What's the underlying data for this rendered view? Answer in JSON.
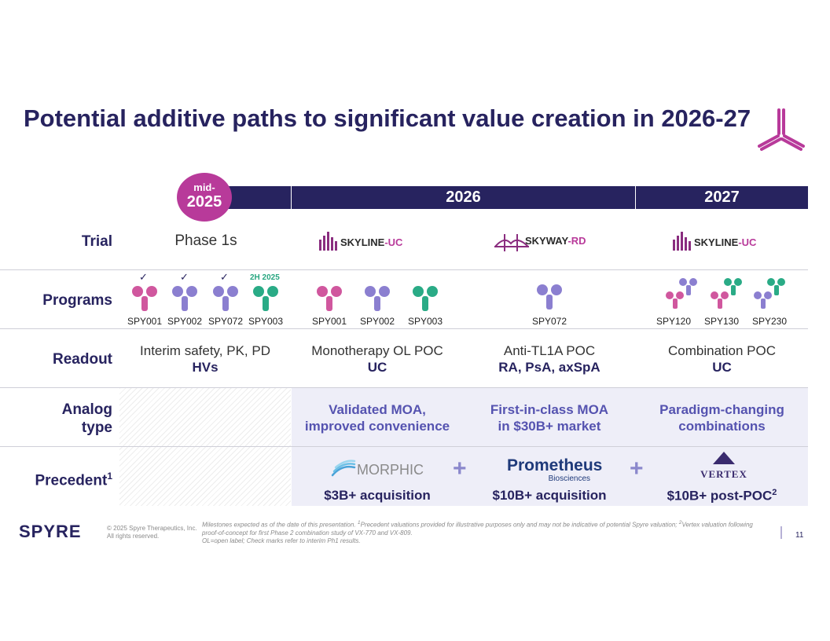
{
  "title": "Potential additive paths to significant value creation in 2026-27",
  "timeline": {
    "mid_label": "mid-",
    "mid_year": "2025",
    "year_2026": "2026",
    "year_2027": "2027"
  },
  "rows": {
    "trial": "Trial",
    "programs": "Programs",
    "readout": "Readout",
    "analog": [
      "Analog",
      "type"
    ],
    "precedent": "Precedent",
    "precedent_sup": "1"
  },
  "trial": {
    "col1": "Phase 1s",
    "col2_logo": {
      "name": "SKYLINE",
      "suffix": "-UC"
    },
    "col3_logo": {
      "name": "SKYWAY",
      "suffix": "-RD"
    },
    "col4_logo": {
      "name": "SKYLINE",
      "suffix": "-UC"
    }
  },
  "programs": {
    "col1": [
      {
        "label": "SPY001",
        "mark": "✓",
        "color": "#d0579e"
      },
      {
        "label": "SPY002",
        "mark": "✓",
        "color": "#8b7fd0"
      },
      {
        "label": "SPY072",
        "mark": "✓",
        "color": "#8b7fd0"
      },
      {
        "label": "SPY003",
        "mark": "2H 2025",
        "color": "#2aab86"
      }
    ],
    "col2": [
      {
        "label": "SPY001",
        "color": "#d0579e"
      },
      {
        "label": "SPY002",
        "color": "#8b7fd0"
      },
      {
        "label": "SPY003",
        "color": "#2aab86"
      }
    ],
    "col3": [
      {
        "label": "SPY072",
        "color": "#8b7fd0"
      }
    ],
    "col4": [
      {
        "label": "SPY120",
        "color1": "#d0579e",
        "color2": "#8b7fd0"
      },
      {
        "label": "SPY130",
        "color1": "#d0579e",
        "color2": "#2aab86"
      },
      {
        "label": "SPY230",
        "color1": "#8b7fd0",
        "color2": "#2aab86"
      }
    ]
  },
  "readout": {
    "col1": {
      "top": "Interim safety, PK, PD",
      "bottom": "HVs"
    },
    "col2": {
      "top": "Monotherapy OL POC",
      "bottom": "UC"
    },
    "col3": {
      "top": "Anti-TL1A POC",
      "bottom": "RA, PsA, axSpA"
    },
    "col4": {
      "top": "Combination POC",
      "bottom": "UC"
    }
  },
  "analog": {
    "col2": [
      "Validated MOA,",
      "improved convenience"
    ],
    "col3": [
      "First-in-class MOA",
      "in $30B+ market"
    ],
    "col4": [
      "Paradigm-changing",
      "combinations"
    ]
  },
  "precedent": {
    "col2": {
      "logo": "MORPHIC",
      "value": "$3B+ acquisition"
    },
    "col3": {
      "logo": "Prometheus",
      "logo_sub": "Biosciences",
      "value": "$10B+ acquisition"
    },
    "col4": {
      "logo": "VERTEX",
      "value": "$10B+ post-POC",
      "sup": "2"
    },
    "plus": "+"
  },
  "footer": {
    "brand": "SPYRE",
    "copyright": [
      "© 2025 Spyre Therapeutics, Inc.",
      "All rights reserved."
    ],
    "note_prefix": "Milestones expected as of the date of this presentation. ",
    "note_sup1": "1",
    "note_mid": "Precedent valuations provided for illustrative purposes only and may not be indicative of potential Spyre valuation; ",
    "note_sup2": "2",
    "note_rest": "Vertex valuation following proof-of-concept for first Phase 2 combination study of VX-770 and VX-809.",
    "note_line2": "OL=open label; Check marks refer to interim Ph1 results.",
    "page": "11"
  },
  "colors": {
    "navy": "#27235f",
    "magenta": "#b83a9a",
    "purple": "#8b7fd0",
    "green": "#2aab86"
  }
}
